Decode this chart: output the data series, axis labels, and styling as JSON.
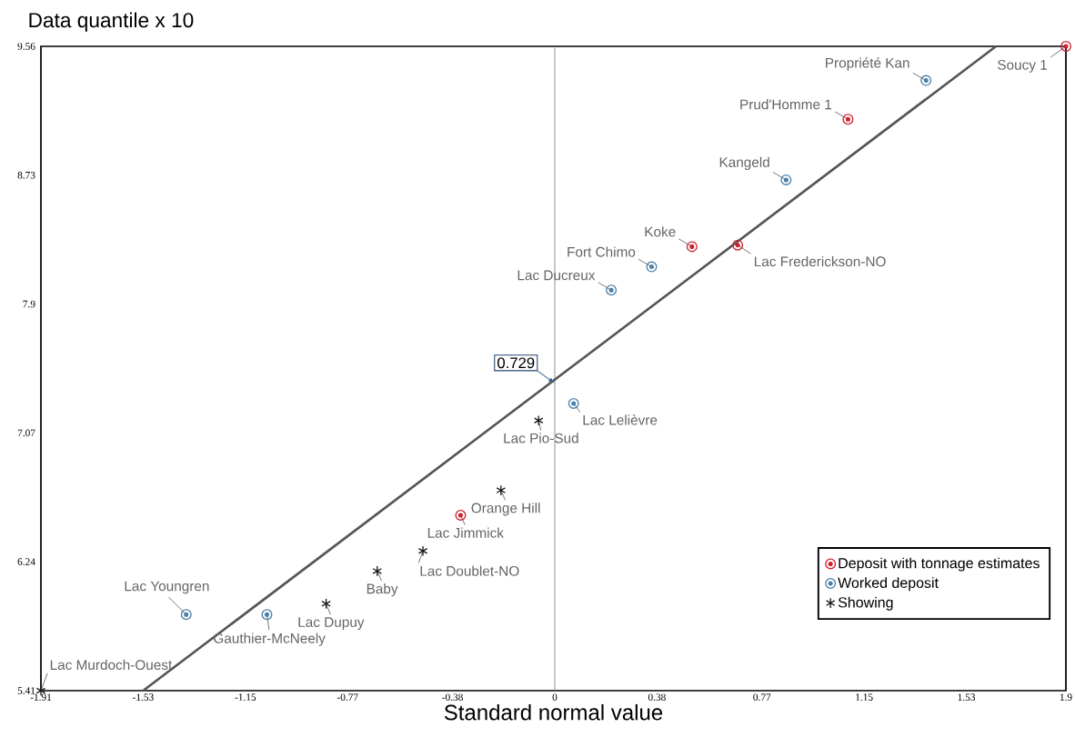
{
  "chart_data": {
    "type": "scatter",
    "xlabel": "Standard normal value",
    "ylabel": "Data quantile x 10",
    "xlim": [
      -1.91,
      1.9
    ],
    "ylim": [
      5.41,
      9.56
    ],
    "xticks": [
      -1.91,
      -1.53,
      -1.15,
      -0.77,
      -0.38,
      0,
      0.38,
      0.77,
      1.15,
      1.53,
      1.9
    ],
    "yticks": [
      5.41,
      6.24,
      7.07,
      7.9,
      8.73,
      9.56
    ],
    "legend": "bottom right",
    "series": [
      {
        "name": "Deposit with tonnage estimates",
        "marker": "circle",
        "color": "#d0202e",
        "x": [
          1.9,
          1.09,
          0.51,
          0.68,
          -0.35
        ],
        "values": [
          9.56,
          9.09,
          8.27,
          8.28,
          6.54
        ]
      },
      {
        "name": "Worked deposit",
        "marker": "circle",
        "color": "#4a7fa8",
        "x": [
          1.38,
          0.86,
          0.36,
          0.21,
          0.07,
          -1.37,
          -1.07
        ],
        "values": [
          9.34,
          8.7,
          8.14,
          7.99,
          7.26,
          5.9,
          5.9
        ]
      },
      {
        "name": "Showing",
        "marker": "cross",
        "color": "#1a1a1a",
        "x": [
          -0.06,
          -0.2,
          -0.49,
          -0.66,
          -0.85,
          -1.91
        ],
        "values": [
          7.15,
          6.7,
          6.31,
          6.18,
          5.97,
          5.41
        ]
      },
      {
        "type": "line",
        "color": "#555555",
        "line_style": "solid",
        "marker": "none",
        "x": [
          -1.53,
          1.64
        ],
        "values": [
          5.41,
          9.56
        ]
      }
    ],
    "ref_lines": [
      {
        "axis": "x",
        "value": 0,
        "color": "#777777"
      }
    ],
    "annotations": [
      {
        "text": "Soucy 1",
        "x": 1.9,
        "y": 9.56
      },
      {
        "text": "Propriété Kan",
        "x": 1.38,
        "y": 9.34
      },
      {
        "text": "Prud'Homme 1",
        "x": 1.09,
        "y": 9.09
      },
      {
        "text": "Kangeld",
        "x": 0.86,
        "y": 8.7
      },
      {
        "text": "Koke",
        "x": 0.51,
        "y": 8.27
      },
      {
        "text": "Fort Chimo",
        "x": 0.36,
        "y": 8.14
      },
      {
        "text": "Lac Ducreux",
        "x": 0.21,
        "y": 7.99
      },
      {
        "text": "Lac Frederickson-NO",
        "x": 0.68,
        "y": 8.28
      },
      {
        "text": "Lac Lelièvre",
        "x": 0.07,
        "y": 7.26
      },
      {
        "text": "Lac Pio-Sud",
        "x": -0.06,
        "y": 7.15
      },
      {
        "text": "Orange Hill",
        "x": -0.2,
        "y": 6.7
      },
      {
        "text": "Lac Jimmick",
        "x": -0.35,
        "y": 6.54
      },
      {
        "text": "Lac Doublet-NO",
        "x": -0.49,
        "y": 6.31
      },
      {
        "text": "Baby",
        "x": -0.66,
        "y": 6.18
      },
      {
        "text": "Lac Dupuy",
        "x": -0.85,
        "y": 5.97
      },
      {
        "text": "Gauthier-McNeely",
        "x": -1.07,
        "y": 5.9
      },
      {
        "text": "Lac Youngren",
        "x": -1.37,
        "y": 5.9
      },
      {
        "text": "Lac Murdoch-Ouest",
        "x": -1.91,
        "y": 5.41
      },
      {
        "text": "0.729",
        "x": 0,
        "y": 7.39
      }
    ]
  }
}
